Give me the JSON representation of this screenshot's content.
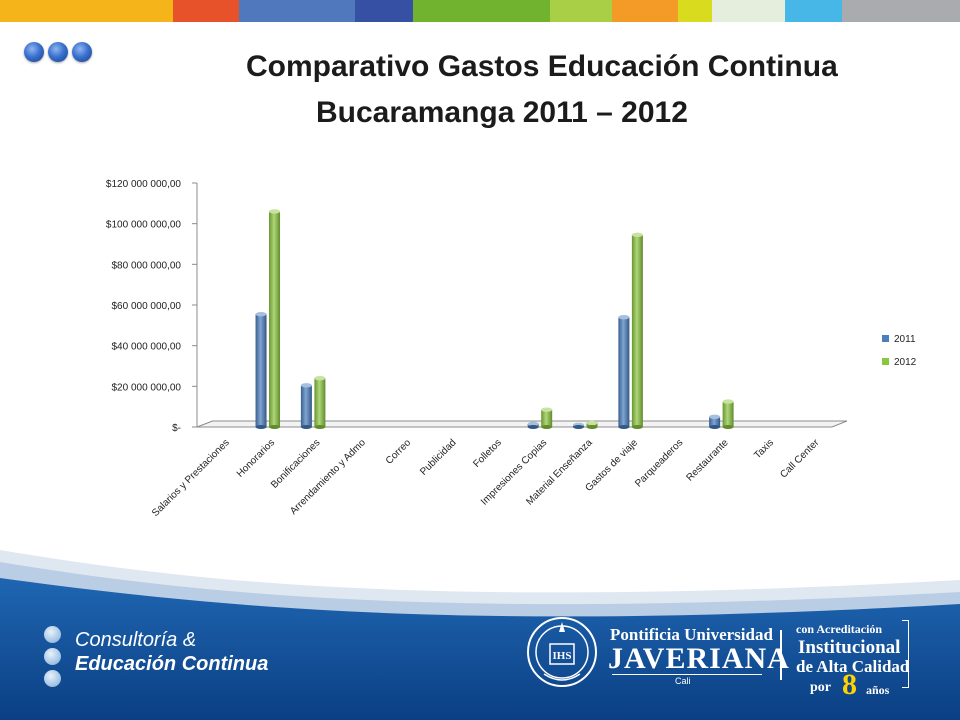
{
  "header": {
    "stripe_colors": [
      "#f4b41a",
      "#e8522a",
      "#4f78bd",
      "#3651a3",
      "#71b22e",
      "#a8cf45",
      "#f39b26",
      "#d9dc1e",
      "#e5eedc",
      "#47b7e8",
      "#a9abae"
    ],
    "title_line1": "Comparativo Gastos Educación Continua",
    "title_line2": "Bucaramanga 2011 – 2012"
  },
  "chart_data": {
    "type": "bar",
    "categories": [
      "Salarios y Prestaciones",
      "Honorarios",
      "Bonificaciones",
      "Arrendamiento y Admo",
      "Correo",
      "Publicidad",
      "Folletos",
      "Impresiones Copias",
      "Material Enseñanza",
      "Gastos de viaje",
      "Parqueaderos",
      "Restaurante",
      "Taxis",
      "Call Center"
    ],
    "series": [
      {
        "name": "2011",
        "color": "#4a7ebf",
        "values": [
          0,
          55500000,
          20500000,
          0,
          0,
          0,
          0,
          1500000,
          1000000,
          54000000,
          0,
          5000000,
          0,
          0
        ]
      },
      {
        "name": "2012",
        "color": "#8cc63f",
        "values": [
          0,
          106000000,
          24000000,
          0,
          0,
          0,
          0,
          8500000,
          2000000,
          94500000,
          0,
          12500000,
          0,
          0
        ]
      }
    ],
    "ylim": [
      0,
      120000000
    ],
    "yticks": [
      0,
      20000000,
      40000000,
      60000000,
      80000000,
      100000000,
      120000000
    ],
    "ytick_labels": [
      "$-",
      "$20 000 000,00",
      "$40 000 000,00",
      "$60 000 000,00",
      "$80 000 000,00",
      "$100 000 000,00",
      "$120 000 000,00"
    ],
    "legend_position": "right",
    "grid": false
  },
  "footer": {
    "brand_line1": "Consultoría &",
    "brand_line2": "Educación Continua",
    "university_line1": "Pontificia Universidad",
    "university_line2": "JAVERIANA",
    "university_city": "Cali",
    "accreditation_line1": "con Acreditación",
    "accreditation_line2": "Institucional",
    "accreditation_line3": "de Alta Calidad",
    "accreditation_por": "por",
    "accreditation_number": "8",
    "accreditation_years": "años"
  }
}
